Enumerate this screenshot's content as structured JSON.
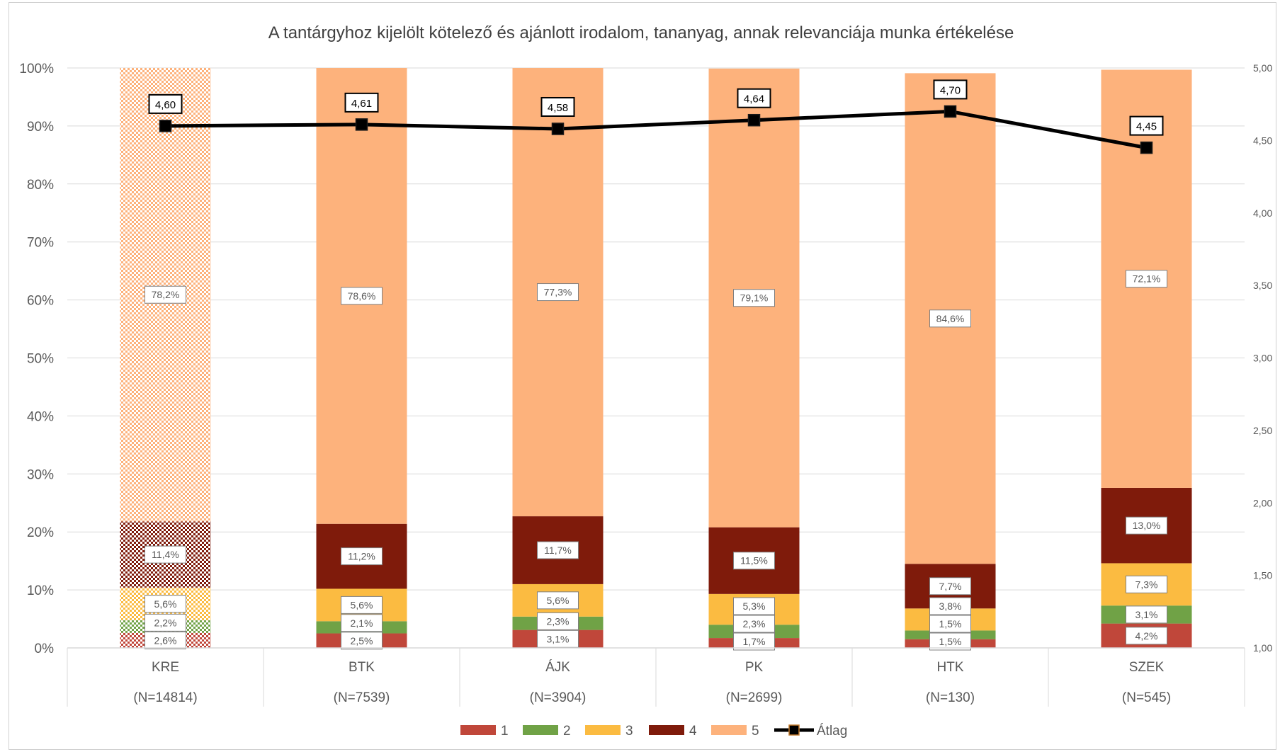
{
  "chart_data": {
    "type": "bar",
    "stacked": true,
    "title": "A tantárgyhoz kijelölt kötelező és ajánlott irodalom, tananyag, annak relevanciája munka értékelése",
    "categories": [
      "KRE",
      "BTK",
      "ÁJK",
      "PK",
      "HTK",
      "SZEK"
    ],
    "category_counts": [
      "(N=14814)",
      "(N=7539)",
      "(N=3904)",
      "(N=2699)",
      "(N=130)",
      "(N=545)"
    ],
    "y_left": {
      "min": 0,
      "max": 100,
      "ticks": [
        "0%",
        "10%",
        "20%",
        "30%",
        "40%",
        "50%",
        "60%",
        "70%",
        "80%",
        "90%",
        "100%"
      ]
    },
    "y_right": {
      "min": 1.0,
      "max": 5.0,
      "ticks": [
        "1,00",
        "1,50",
        "2,00",
        "2,50",
        "3,00",
        "3,50",
        "4,00",
        "4,50",
        "5,00"
      ]
    },
    "grid": true,
    "legend_position": "bottom",
    "series": [
      {
        "name": "1",
        "color": "#c0473a",
        "values": [
          2.6,
          2.5,
          3.1,
          1.7,
          1.5,
          4.2
        ],
        "labels": [
          "2,6%",
          "2,5%",
          "3,1%",
          "1,7%",
          "1,5%",
          "4,2%"
        ]
      },
      {
        "name": "2",
        "color": "#70a246",
        "values": [
          2.2,
          2.1,
          2.3,
          2.3,
          1.5,
          3.1
        ],
        "labels": [
          "2,2%",
          "2,1%",
          "2,3%",
          "2,3%",
          "1,5%",
          "3,1%"
        ]
      },
      {
        "name": "3",
        "color": "#fbbb41",
        "values": [
          5.6,
          5.6,
          5.6,
          5.3,
          3.8,
          7.3
        ],
        "labels": [
          "5,6%",
          "5,6%",
          "5,6%",
          "5,3%",
          "3,8%",
          "7,3%"
        ]
      },
      {
        "name": "4",
        "color": "#7f1b0b",
        "values": [
          11.4,
          11.2,
          11.7,
          11.5,
          7.7,
          13.0
        ],
        "labels": [
          "11,4%",
          "11,2%",
          "11,7%",
          "11,5%",
          "7,7%",
          "13,0%"
        ]
      },
      {
        "name": "5",
        "color": "#fdb27c",
        "values": [
          78.2,
          78.6,
          77.3,
          79.1,
          84.6,
          72.1
        ],
        "labels": [
          "78,2%",
          "78,6%",
          "77,3%",
          "79,1%",
          "84,6%",
          "72,1%"
        ]
      }
    ],
    "line_series": {
      "name": "Átlag",
      "axis": "right",
      "color": "#000000",
      "values": [
        4.6,
        4.61,
        4.58,
        4.64,
        4.7,
        4.45
      ],
      "labels": [
        "4,60",
        "4,61",
        "4,58",
        "4,64",
        "4,70",
        "4,45"
      ]
    },
    "patterned_category": "KRE"
  }
}
